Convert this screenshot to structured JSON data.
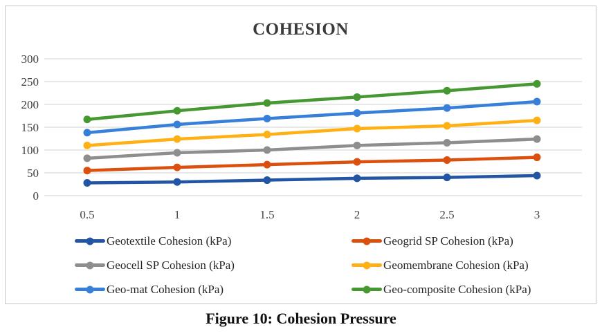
{
  "title": "COHESION",
  "caption": "Figure 10: Cohesion Pressure",
  "chart_data": {
    "type": "line",
    "title": "COHESION",
    "xlabel": "",
    "ylabel": "",
    "x": [
      0.5,
      1,
      1.5,
      2,
      2.5,
      3
    ],
    "categories": [
      "0.5",
      "1",
      "1.5",
      "2",
      "2.5",
      "3"
    ],
    "ylim": [
      0,
      300
    ],
    "yticks": [
      0,
      50,
      100,
      150,
      200,
      250,
      300
    ],
    "grid": true,
    "legend_position": "bottom",
    "colors": {
      "gridline": "#d9d9d9",
      "axis_text": "#404040",
      "frame_border": "#c5c5c5"
    },
    "series": [
      {
        "name": "Geotextile Cohesion (kPa)",
        "color": "#2255a4",
        "values": [
          28,
          30,
          34,
          38,
          40,
          44
        ]
      },
      {
        "name": "Geogrid SP Cohesion (kPa)",
        "color": "#dc500e",
        "values": [
          55,
          62,
          68,
          74,
          78,
          84
        ]
      },
      {
        "name": "Geocell SP Cohesion (kPa)",
        "color": "#8e8e8e",
        "values": [
          82,
          94,
          100,
          110,
          116,
          124
        ]
      },
      {
        "name": "Geomembrane Cohesion (kPa)",
        "color": "#ffb014",
        "values": [
          110,
          124,
          134,
          147,
          153,
          165
        ]
      },
      {
        "name": "Geo-mat Cohesion (kPa)",
        "color": "#377fd9",
        "values": [
          138,
          156,
          169,
          181,
          192,
          206
        ]
      },
      {
        "name": "Geo-composite Cohesion (kPa)",
        "color": "#469832",
        "values": [
          167,
          186,
          203,
          216,
          230,
          245
        ]
      }
    ]
  }
}
